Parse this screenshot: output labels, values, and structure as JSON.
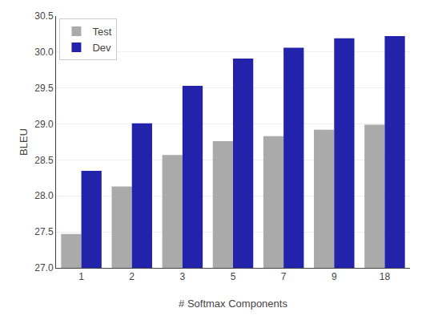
{
  "chart_data": {
    "type": "bar",
    "categories": [
      1,
      2,
      3,
      5,
      7,
      9,
      18
    ],
    "series": [
      {
        "name": "Test",
        "color": "#aaaaaa",
        "values": [
          27.47,
          28.13,
          28.57,
          28.76,
          28.83,
          28.92,
          28.99
        ]
      },
      {
        "name": "Dev",
        "color": "#2222aa",
        "values": [
          28.35,
          29.01,
          29.53,
          29.91,
          30.06,
          30.19,
          30.22
        ]
      }
    ],
    "xlabel": "# Softmax Components",
    "ylabel": "BLEU",
    "ylim": [
      27.0,
      30.5
    ],
    "yticks": [
      {
        "value": 27.0,
        "label": "27.0"
      },
      27.5,
      {
        "value": 28.0,
        "label": "28.0"
      },
      28.5,
      {
        "value": 29.0,
        "label": "29.0"
      },
      29.5,
      {
        "value": 30.0,
        "label": "30.0"
      },
      30.5
    ],
    "grid": true,
    "legend": "upper left"
  }
}
